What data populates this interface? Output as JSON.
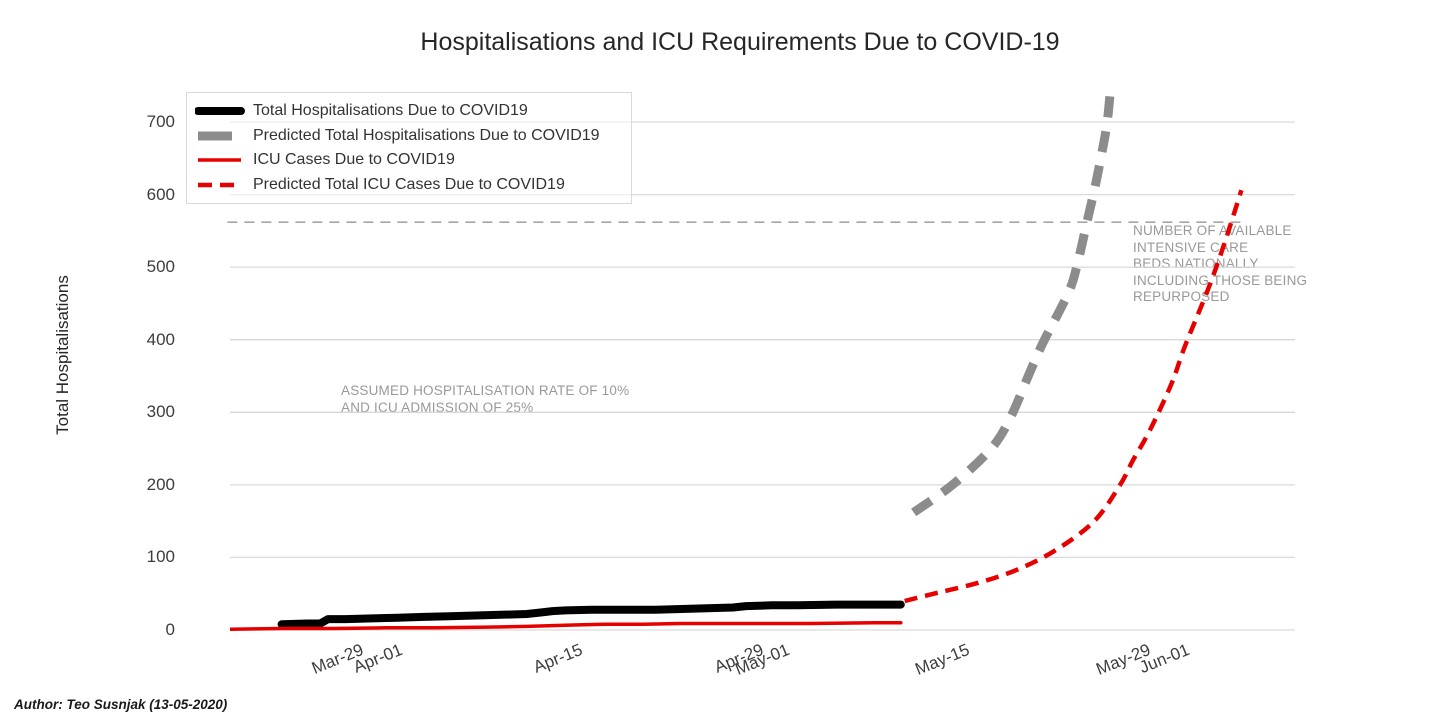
{
  "author_note": "Author: Teo Susnjak (13-05-2020)",
  "annotations": {
    "assumption": "ASSUMED HOSPITALISATION RATE OF 10%\nAND ICU ADMISSION OF 25%",
    "icu_beds": "NUMBER OF AVAILABLE\nINTENSIVE CARE\nBEDS NATIONALLY\nINCLUDING THOSE BEING\nREPURPOSED"
  },
  "colors": {
    "actual_hospitalisations": "#000000",
    "predicted_hospitalisations": "#8c8c8c",
    "icu": "#e60000",
    "reference_line": "#a6a6a6",
    "grid": "#d9d9d9",
    "tick_text": "#3d3d3d",
    "annotation_text": "#999999"
  },
  "chart_data": {
    "type": "line",
    "title": "Hospitalisations and ICU Requirements Due to COVID-19",
    "xlabel": "",
    "ylabel": "Total Hospitalisations",
    "ylim": [
      0,
      752
    ],
    "x_unit": "days since 2020-03-19",
    "xlim": [
      0,
      82.5
    ],
    "grid": true,
    "legend_position": "top-left",
    "y_ticks": [
      0,
      100,
      200,
      300,
      400,
      500,
      600,
      700
    ],
    "x_ticks": [
      {
        "label": "Mar-29",
        "day": 10
      },
      {
        "label": "Apr-01",
        "day": 13
      },
      {
        "label": "Apr-15",
        "day": 27
      },
      {
        "label": "Apr-29",
        "day": 41
      },
      {
        "label": "May-01",
        "day": 43
      },
      {
        "label": "May-15",
        "day": 57
      },
      {
        "label": "May-29",
        "day": 71
      },
      {
        "label": "Jun-01",
        "day": 74
      }
    ],
    "series": [
      {
        "name": "Total Hospitalisations Due to COVID19",
        "color": "#000000",
        "style": "solid",
        "width": 8,
        "smooth": false,
        "points": [
          [
            4,
            8
          ],
          [
            6,
            9
          ],
          [
            7,
            9
          ],
          [
            7.6,
            15
          ],
          [
            9,
            15
          ],
          [
            11,
            16
          ],
          [
            13,
            17
          ],
          [
            15,
            18
          ],
          [
            17,
            19
          ],
          [
            19,
            20
          ],
          [
            21,
            21
          ],
          [
            23,
            22
          ],
          [
            24,
            24
          ],
          [
            25,
            26
          ],
          [
            26,
            27
          ],
          [
            28,
            28
          ],
          [
            31,
            28
          ],
          [
            33,
            28
          ],
          [
            35,
            29
          ],
          [
            37,
            30
          ],
          [
            39,
            31
          ],
          [
            40,
            33
          ],
          [
            42,
            34
          ],
          [
            44,
            34
          ],
          [
            47,
            35
          ],
          [
            52,
            35
          ]
        ]
      },
      {
        "name": "Predicted Total Hospitalisations Due to COVID19",
        "color": "#8c8c8c",
        "style": "dashed",
        "width": 9,
        "smooth": true,
        "points": [
          [
            53,
            162
          ],
          [
            56,
            200
          ],
          [
            59,
            250
          ],
          [
            60.5,
            293
          ],
          [
            62,
            355
          ],
          [
            63,
            395
          ],
          [
            65,
            465
          ],
          [
            65.7,
            505
          ],
          [
            66.4,
            560
          ],
          [
            67,
            606
          ],
          [
            67.5,
            650
          ],
          [
            68,
            700
          ],
          [
            68.3,
            755
          ]
        ]
      },
      {
        "name": "ICU Cases Due to COVID19",
        "color": "#e60000",
        "style": "solid",
        "width": 3.5,
        "smooth": false,
        "points": [
          [
            0,
            1
          ],
          [
            4,
            2
          ],
          [
            8,
            2
          ],
          [
            12,
            3
          ],
          [
            16,
            3
          ],
          [
            20,
            4
          ],
          [
            23,
            5
          ],
          [
            25,
            6
          ],
          [
            27,
            7
          ],
          [
            29,
            8
          ],
          [
            32,
            8
          ],
          [
            35,
            9
          ],
          [
            40,
            9
          ],
          [
            45,
            9
          ],
          [
            50,
            10
          ],
          [
            52,
            10
          ]
        ]
      },
      {
        "name": "Predicted Total ICU Cases Due to COVID19",
        "color": "#e60000",
        "style": "dashed",
        "width": 4.5,
        "smooth": true,
        "points": [
          [
            52.3,
            40
          ],
          [
            55,
            52
          ],
          [
            58,
            65
          ],
          [
            61,
            83
          ],
          [
            64,
            110
          ],
          [
            67,
            150
          ],
          [
            69,
            200
          ],
          [
            70,
            234
          ],
          [
            71.3,
            275
          ],
          [
            73,
            340
          ],
          [
            74,
            390
          ],
          [
            75.7,
            464
          ],
          [
            77,
            528
          ],
          [
            78.4,
            606
          ]
        ]
      }
    ],
    "reference_line": {
      "label": "available ICU beds",
      "value": 562,
      "style": "dashed",
      "x_start_day": -0.2,
      "x_end_day": 78.5
    }
  }
}
